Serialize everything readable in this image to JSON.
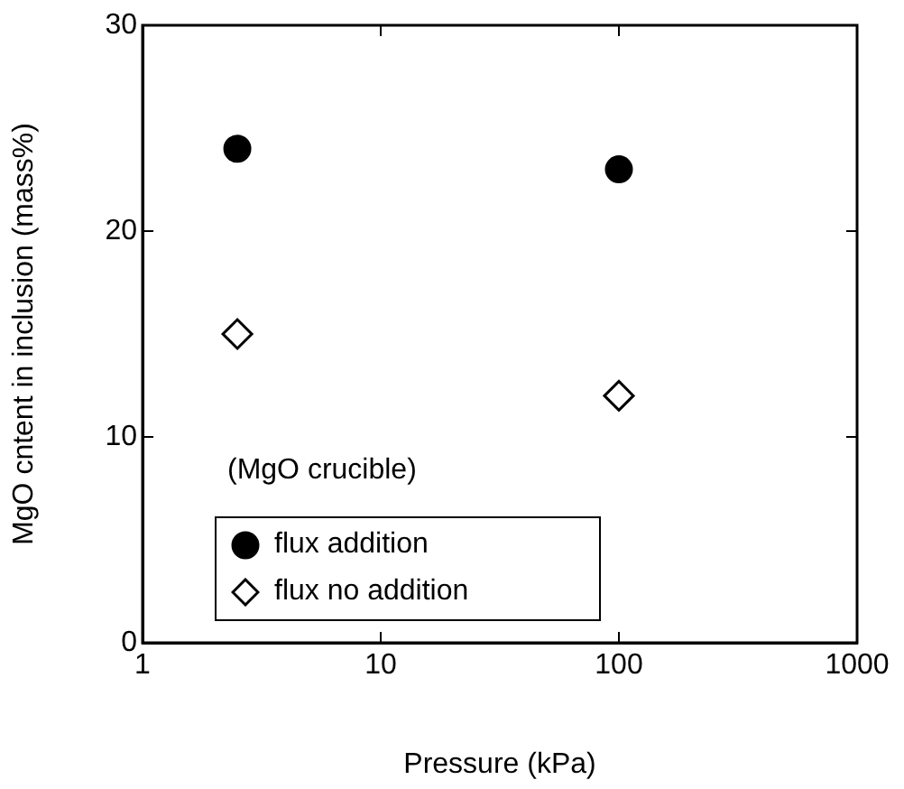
{
  "chart_data": {
    "type": "scatter",
    "xlabel": "Pressure (kPa)",
    "ylabel": "MgO cntent in inclusion (mass%)",
    "legend_title": "(MgO crucible)",
    "log": "x",
    "xlim": [
      1,
      1000
    ],
    "xticks": [
      1,
      10,
      100,
      1000
    ],
    "ylim": [
      0,
      30
    ],
    "yticks": [
      0,
      10,
      20,
      30
    ],
    "grid": false,
    "legend": "bottom left",
    "x": [
      2.5,
      100
    ],
    "series": [
      {
        "name": "flux addition",
        "color": "#000000",
        "marker": "circle",
        "values": [
          24,
          23
        ]
      },
      {
        "name": "flux no addition",
        "color": "#000000",
        "marker": "diamond",
        "values": [
          15,
          12
        ]
      }
    ]
  }
}
